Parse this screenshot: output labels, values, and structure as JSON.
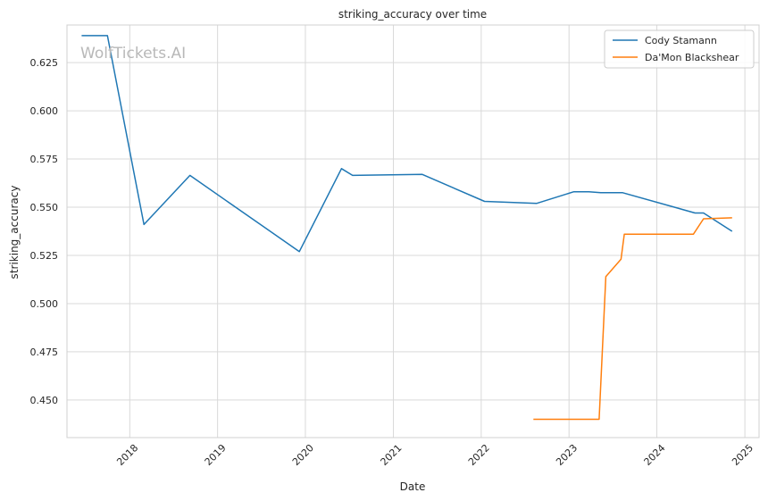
{
  "watermark": "WolfTickets.AI",
  "chart_data": {
    "type": "line",
    "title": "striking_accuracy over time",
    "xlabel": "Date",
    "ylabel": "striking_accuracy",
    "x_type": "date",
    "xlim": [
      "2017-04-15",
      "2025-03-01"
    ],
    "ylim": [
      0.4305,
      0.6445
    ],
    "x_ticks": [
      "2018",
      "2019",
      "2020",
      "2021",
      "2022",
      "2023",
      "2024",
      "2025"
    ],
    "y_ticks": [
      "0.450",
      "0.475",
      "0.500",
      "0.525",
      "0.550",
      "0.575",
      "0.600",
      "0.625"
    ],
    "grid": true,
    "legend_position": "top-right",
    "series": [
      {
        "name": "Cody Stamann",
        "color": "#1f77b4",
        "points": [
          {
            "x": "2017-06-15",
            "y": 0.639
          },
          {
            "x": "2017-09-30",
            "y": 0.639
          },
          {
            "x": "2018-03-01",
            "y": 0.541
          },
          {
            "x": "2018-09-08",
            "y": 0.5665
          },
          {
            "x": "2019-12-07",
            "y": 0.527
          },
          {
            "x": "2020-05-30",
            "y": 0.57
          },
          {
            "x": "2020-07-15",
            "y": 0.5665
          },
          {
            "x": "2021-05-01",
            "y": 0.567
          },
          {
            "x": "2022-01-15",
            "y": 0.553
          },
          {
            "x": "2022-08-20",
            "y": 0.552
          },
          {
            "x": "2023-01-21",
            "y": 0.558
          },
          {
            "x": "2023-03-25",
            "y": 0.558
          },
          {
            "x": "2023-05-13",
            "y": 0.5575
          },
          {
            "x": "2023-08-12",
            "y": 0.5575
          },
          {
            "x": "2024-06-08",
            "y": 0.547
          },
          {
            "x": "2024-07-13",
            "y": 0.547
          },
          {
            "x": "2024-11-09",
            "y": 0.5375
          }
        ]
      },
      {
        "name": "Da'Mon Blackshear",
        "color": "#ff7f0e",
        "points": [
          {
            "x": "2022-08-06",
            "y": 0.44
          },
          {
            "x": "2023-05-06",
            "y": 0.44
          },
          {
            "x": "2023-06-03",
            "y": 0.514
          },
          {
            "x": "2023-08-05",
            "y": 0.523
          },
          {
            "x": "2023-08-19",
            "y": 0.536
          },
          {
            "x": "2024-06-01",
            "y": 0.536
          },
          {
            "x": "2024-07-13",
            "y": 0.544
          },
          {
            "x": "2024-11-09",
            "y": 0.5445
          }
        ]
      }
    ]
  }
}
